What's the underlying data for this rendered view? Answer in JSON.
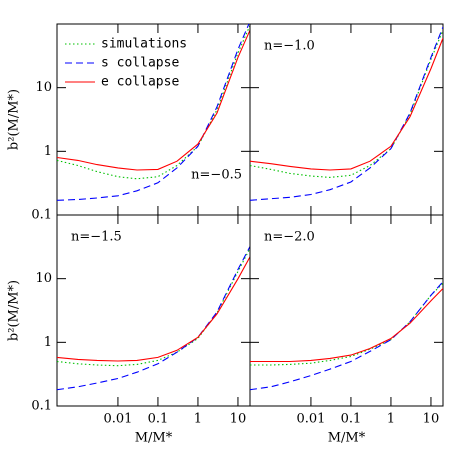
{
  "chart_data": [
    {
      "type": "line",
      "annotation": "n=−0.5",
      "ylabel": "b²(M/M*)",
      "legend": true,
      "x": [
        0.0003,
        0.001,
        0.003,
        0.01,
        0.03,
        0.1,
        0.3,
        1,
        3,
        10,
        20
      ],
      "xlim": [
        0.0003,
        20
      ],
      "ylim": [
        0.1,
        100
      ],
      "xticks": [
        0.01,
        0.1,
        1,
        10
      ],
      "yticks": [
        0.1,
        1,
        10
      ],
      "series": [
        {
          "name": "simulations",
          "color": "#00c000",
          "style": "dotted",
          "values": [
            0.72,
            0.6,
            0.48,
            0.4,
            0.37,
            0.4,
            0.6,
            1.2,
            4.5,
            35,
            95
          ]
        },
        {
          "name": "s collapse",
          "color": "#0000ff",
          "style": "dashed",
          "values": [
            0.17,
            0.175,
            0.185,
            0.2,
            0.24,
            0.32,
            0.55,
            1.2,
            5,
            40,
            110
          ]
        },
        {
          "name": "e collapse",
          "color": "#ff0000",
          "style": "solid",
          "values": [
            0.8,
            0.72,
            0.62,
            0.55,
            0.51,
            0.52,
            0.7,
            1.3,
            4,
            30,
            80
          ]
        }
      ]
    },
    {
      "type": "line",
      "annotation": "n=−1.0",
      "x": [
        0.0003,
        0.001,
        0.003,
        0.01,
        0.03,
        0.1,
        0.3,
        1,
        3,
        10,
        20
      ],
      "xlim": [
        0.0003,
        20
      ],
      "ylim": [
        0.1,
        100
      ],
      "xticks": [
        0.01,
        0.1,
        1,
        10
      ],
      "yticks": [
        0.1,
        1,
        10
      ],
      "series": [
        {
          "color": "#00c000",
          "style": "dotted",
          "values": [
            0.6,
            0.52,
            0.45,
            0.41,
            0.39,
            0.42,
            0.6,
            1.1,
            3.8,
            28,
            80
          ]
        },
        {
          "color": "#0000ff",
          "style": "dashed",
          "values": [
            0.17,
            0.18,
            0.19,
            0.21,
            0.25,
            0.33,
            0.55,
            1.1,
            4,
            30,
            90
          ]
        },
        {
          "color": "#ff0000",
          "style": "solid",
          "values": [
            0.7,
            0.64,
            0.58,
            0.53,
            0.51,
            0.53,
            0.7,
            1.2,
            3.5,
            20,
            60
          ]
        }
      ]
    },
    {
      "type": "line",
      "annotation": "n=−1.5",
      "ylabel": "b²(M/M*)",
      "xlabel": "M/M*",
      "x": [
        0.0003,
        0.001,
        0.003,
        0.01,
        0.03,
        0.1,
        0.3,
        1,
        3,
        10,
        20
      ],
      "xlim": [
        0.0003,
        20
      ],
      "ylim": [
        0.1,
        100
      ],
      "xticks": [
        0.01,
        0.1,
        1,
        10
      ],
      "yticks": [
        0.1,
        1,
        10
      ],
      "series": [
        {
          "color": "#00c000",
          "style": "dotted",
          "values": [
            0.5,
            0.46,
            0.44,
            0.43,
            0.45,
            0.52,
            0.7,
            1.15,
            2.9,
            13,
            30
          ]
        },
        {
          "color": "#0000ff",
          "style": "dashed",
          "values": [
            0.18,
            0.2,
            0.23,
            0.27,
            0.34,
            0.46,
            0.7,
            1.2,
            3,
            14,
            32
          ]
        },
        {
          "color": "#ff0000",
          "style": "solid",
          "values": [
            0.58,
            0.54,
            0.52,
            0.51,
            0.52,
            0.58,
            0.75,
            1.2,
            2.8,
            10,
            22
          ]
        }
      ]
    },
    {
      "type": "line",
      "annotation": "n=−2.0",
      "xlabel": "M/M*",
      "x": [
        0.0003,
        0.001,
        0.003,
        0.01,
        0.03,
        0.1,
        0.3,
        1,
        3,
        10,
        20
      ],
      "xlim": [
        0.0003,
        20
      ],
      "ylim": [
        0.1,
        100
      ],
      "xticks": [
        0.01,
        0.1,
        1,
        10
      ],
      "yticks": [
        0.1,
        1,
        10
      ],
      "series": [
        {
          "color": "#00c000",
          "style": "dotted",
          "values": [
            0.44,
            0.44,
            0.45,
            0.47,
            0.52,
            0.6,
            0.78,
            1.1,
            2.1,
            5.5,
            8.5
          ]
        },
        {
          "color": "#0000ff",
          "style": "dashed",
          "values": [
            0.18,
            0.2,
            0.24,
            0.3,
            0.38,
            0.5,
            0.72,
            1.1,
            2.1,
            5.5,
            9
          ]
        },
        {
          "color": "#ff0000",
          "style": "solid",
          "values": [
            0.5,
            0.5,
            0.5,
            0.52,
            0.56,
            0.63,
            0.8,
            1.15,
            2,
            4.5,
            7
          ]
        }
      ]
    }
  ]
}
